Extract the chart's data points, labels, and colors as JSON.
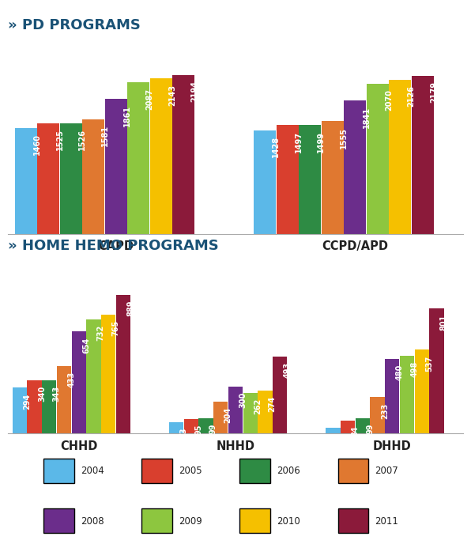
{
  "pd_title": "» PD PROGRAMS",
  "hh_title": "» HOME HEMO PROGRAMS",
  "years": [
    "2004",
    "2005",
    "2006",
    "2007",
    "2008",
    "2009",
    "2010",
    "2011"
  ],
  "colors": [
    "#5BB8E8",
    "#D93F2E",
    "#2E8B44",
    "#E07830",
    "#6B2D8B",
    "#8DC63F",
    "#F5C000",
    "#8B1A3A"
  ],
  "pd_categories": [
    "CAPD",
    "CCPD/APD"
  ],
  "pd_data": {
    "CAPD": [
      1460,
      1525,
      1526,
      1581,
      1861,
      2087,
      2143,
      2194
    ],
    "CCPD/APD": [
      1428,
      1497,
      1499,
      1555,
      1841,
      2070,
      2126,
      2179
    ]
  },
  "hh_categories": [
    "CHHD",
    "NHHD",
    "DHHD"
  ],
  "hh_data": {
    "CHHD": [
      294,
      340,
      343,
      433,
      654,
      732,
      765,
      889
    ],
    "NHHD": [
      73,
      95,
      99,
      204,
      300,
      262,
      274,
      493
    ],
    "DHHD": [
      37,
      84,
      99,
      233,
      480,
      498,
      537,
      801
    ]
  },
  "background_color": "#FFFFFF",
  "label_fontsize": 7.0,
  "title_fontsize": 13,
  "cat_label_fontsize": 10.5,
  "legend_fontsize": 8.5
}
